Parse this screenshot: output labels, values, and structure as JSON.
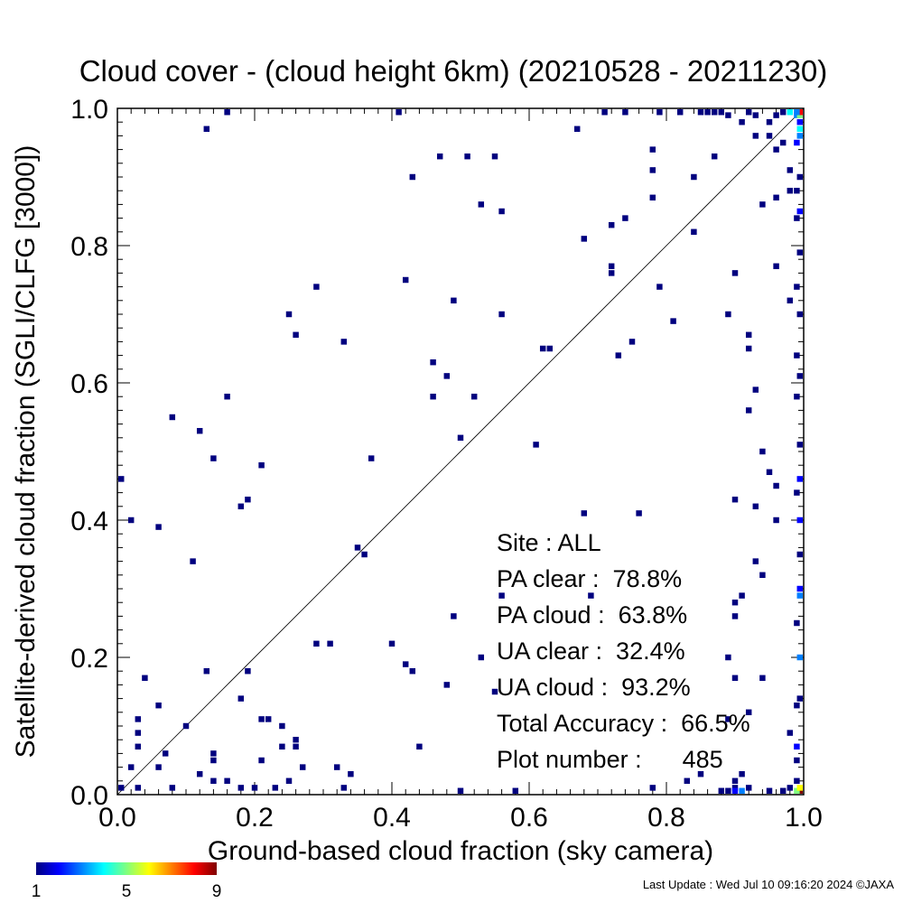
{
  "chart_data": {
    "type": "heatmap",
    "title": "Cloud cover - (cloud height 6km)  (20210528 - 20211230)",
    "xlabel": "Ground-based cloud fraction (sky camera)",
    "ylabel": "Satellite-derived cloud fraction (SGLI/CLFG [3000])",
    "xlim": [
      0.0,
      1.0
    ],
    "ylim": [
      0.0,
      1.0
    ],
    "xticks": [
      "0.0",
      "0.2",
      "0.4",
      "0.6",
      "0.8",
      "1.0"
    ],
    "yticks": [
      "0.0",
      "0.2",
      "0.4",
      "0.6",
      "0.8",
      "1.0"
    ],
    "grid": false,
    "diagonal": true,
    "bin_size": 0.01,
    "colorbar": {
      "min_label": "1",
      "mid_label": "5",
      "max_label": "9",
      "colors": [
        "#00007f",
        "#0000ff",
        "#007fff",
        "#00ffff",
        "#7fff7f",
        "#ffff00",
        "#ff7f00",
        "#ff0000",
        "#7f0000"
      ]
    },
    "stats": [
      "Site : ALL",
      "PA clear :  78.8%",
      "PA cloud :  63.8%",
      "UA clear :  32.4%",
      "UA cloud :  93.2%",
      "Total Accuracy :  66.5%",
      "Plot number :      485"
    ],
    "points": [
      [
        0.0,
        0.46,
        1
      ],
      [
        0.02,
        0.4,
        1
      ],
      [
        0.06,
        0.39,
        1
      ],
      [
        0.11,
        0.34,
        1
      ],
      [
        0.08,
        0.55,
        1
      ],
      [
        0.12,
        0.53,
        1
      ],
      [
        0.14,
        0.49,
        1
      ],
      [
        0.16,
        0.58,
        1
      ],
      [
        0.18,
        0.42,
        1
      ],
      [
        0.19,
        0.43,
        1
      ],
      [
        0.21,
        0.48,
        1
      ],
      [
        0.13,
        0.97,
        1
      ],
      [
        0.16,
        1.0,
        1
      ],
      [
        0.41,
        1.0,
        1
      ],
      [
        0.43,
        0.9,
        1
      ],
      [
        0.47,
        0.93,
        1
      ],
      [
        0.51,
        0.93,
        1
      ],
      [
        0.55,
        0.93,
        1
      ],
      [
        0.53,
        0.86,
        1
      ],
      [
        0.56,
        0.85,
        1
      ],
      [
        0.42,
        0.75,
        1
      ],
      [
        0.29,
        0.74,
        1
      ],
      [
        0.25,
        0.7,
        1
      ],
      [
        0.26,
        0.67,
        1
      ],
      [
        0.33,
        0.66,
        1
      ],
      [
        0.49,
        0.72,
        1
      ],
      [
        0.56,
        0.7,
        1
      ],
      [
        0.46,
        0.63,
        1
      ],
      [
        0.48,
        0.61,
        1
      ],
      [
        0.46,
        0.58,
        1
      ],
      [
        0.52,
        0.58,
        1
      ],
      [
        0.5,
        0.52,
        1
      ],
      [
        0.37,
        0.49,
        1
      ],
      [
        0.61,
        0.51,
        1
      ],
      [
        0.62,
        0.65,
        1
      ],
      [
        0.63,
        0.65,
        1
      ],
      [
        0.67,
        0.97,
        1
      ],
      [
        0.68,
        0.81,
        1
      ],
      [
        0.72,
        0.83,
        1
      ],
      [
        0.74,
        0.84,
        1
      ],
      [
        0.72,
        0.77,
        1
      ],
      [
        0.72,
        0.76,
        1
      ],
      [
        0.73,
        0.64,
        1
      ],
      [
        0.75,
        0.66,
        1
      ],
      [
        0.78,
        0.94,
        1
      ],
      [
        0.78,
        0.91,
        1
      ],
      [
        0.78,
        0.87,
        1
      ],
      [
        0.79,
        0.74,
        1
      ],
      [
        0.81,
        0.69,
        1
      ],
      [
        0.84,
        0.9,
        1
      ],
      [
        0.84,
        0.82,
        1
      ],
      [
        0.87,
        0.93,
        1
      ],
      [
        0.89,
        0.7,
        1
      ],
      [
        0.9,
        0.76,
        1
      ],
      [
        0.92,
        0.67,
        1
      ],
      [
        0.92,
        0.65,
        1
      ],
      [
        0.93,
        0.59,
        1
      ],
      [
        0.92,
        0.56,
        1
      ],
      [
        0.94,
        0.86,
        1
      ],
      [
        0.96,
        0.77,
        1
      ],
      [
        0.96,
        0.87,
        1
      ],
      [
        0.97,
        0.95,
        1
      ],
      [
        0.96,
        0.94,
        1
      ],
      [
        0.93,
        0.96,
        1
      ],
      [
        0.95,
        0.96,
        1
      ],
      [
        0.94,
        0.5,
        1
      ],
      [
        0.95,
        0.47,
        1
      ],
      [
        0.93,
        0.42,
        1
      ],
      [
        0.96,
        0.45,
        1
      ],
      [
        0.96,
        0.4,
        1
      ],
      [
        0.93,
        0.34,
        1
      ],
      [
        0.94,
        0.32,
        1
      ],
      [
        0.91,
        0.29,
        1
      ],
      [
        0.9,
        0.28,
        1
      ],
      [
        0.9,
        0.26,
        1
      ],
      [
        0.9,
        0.43,
        1
      ],
      [
        0.89,
        0.2,
        1
      ],
      [
        0.9,
        0.17,
        1
      ],
      [
        0.94,
        0.17,
        1
      ],
      [
        0.89,
        0.11,
        1
      ],
      [
        0.92,
        0.12,
        1
      ],
      [
        0.68,
        0.41,
        1
      ],
      [
        0.76,
        0.41,
        1
      ],
      [
        0.69,
        0.29,
        1
      ],
      [
        0.56,
        0.29,
        1
      ],
      [
        0.49,
        0.26,
        1
      ],
      [
        0.53,
        0.2,
        1
      ],
      [
        0.55,
        0.15,
        1
      ],
      [
        0.48,
        0.16,
        1
      ],
      [
        0.4,
        0.22,
        1
      ],
      [
        0.42,
        0.19,
        1
      ],
      [
        0.43,
        0.18,
        1
      ],
      [
        0.29,
        0.22,
        1
      ],
      [
        0.31,
        0.22,
        1
      ],
      [
        0.35,
        0.36,
        1
      ],
      [
        0.36,
        0.35,
        1
      ],
      [
        0.13,
        0.18,
        1
      ],
      [
        0.19,
        0.18,
        1
      ],
      [
        0.18,
        0.14,
        1
      ],
      [
        0.21,
        0.11,
        1
      ],
      [
        0.22,
        0.11,
        1
      ],
      [
        0.24,
        0.1,
        1
      ],
      [
        0.26,
        0.08,
        1
      ],
      [
        0.26,
        0.07,
        1
      ],
      [
        0.24,
        0.07,
        1
      ],
      [
        0.21,
        0.05,
        1
      ],
      [
        0.14,
        0.06,
        1
      ],
      [
        0.14,
        0.05,
        1
      ],
      [
        0.1,
        0.1,
        1
      ],
      [
        0.07,
        0.06,
        1
      ],
      [
        0.06,
        0.04,
        1
      ],
      [
        0.03,
        0.11,
        1
      ],
      [
        0.03,
        0.09,
        1
      ],
      [
        0.03,
        0.07,
        1
      ],
      [
        0.04,
        0.17,
        1
      ],
      [
        0.06,
        0.13,
        1
      ],
      [
        0.02,
        0.04,
        1
      ],
      [
        0.0,
        0.01,
        1
      ],
      [
        0.03,
        0.01,
        1
      ],
      [
        0.08,
        0.01,
        1
      ],
      [
        0.12,
        0.03,
        1
      ],
      [
        0.14,
        0.02,
        1
      ],
      [
        0.16,
        0.02,
        1
      ],
      [
        0.18,
        0.01,
        1
      ],
      [
        0.2,
        0.01,
        1
      ],
      [
        0.23,
        0.01,
        1
      ],
      [
        0.25,
        0.02,
        1
      ],
      [
        0.27,
        0.04,
        1
      ],
      [
        0.32,
        0.04,
        1
      ],
      [
        0.34,
        0.03,
        1
      ],
      [
        0.33,
        0.01,
        1
      ],
      [
        0.44,
        0.07,
        1
      ],
      [
        0.5,
        0.0,
        1
      ],
      [
        0.58,
        0.0,
        1
      ],
      [
        0.78,
        0.01,
        1
      ],
      [
        0.83,
        0.02,
        1
      ],
      [
        0.88,
        0.0,
        1
      ],
      [
        0.9,
        0.02,
        1
      ],
      [
        0.91,
        0.03,
        1
      ],
      [
        0.85,
        0.03,
        1
      ],
      [
        0.9,
        0.01,
        1
      ],
      [
        0.9,
        0.0,
        2
      ],
      [
        0.91,
        0.0,
        3
      ],
      [
        0.89,
        0.0,
        1
      ],
      [
        0.92,
        0.01,
        1
      ],
      [
        0.95,
        0.0,
        1
      ],
      [
        0.97,
        0.0,
        1
      ],
      [
        0.98,
        0.01,
        1
      ],
      [
        0.99,
        0.02,
        1
      ],
      [
        1.0,
        0.0,
        9
      ],
      [
        0.99,
        0.0,
        5
      ],
      [
        1.0,
        0.01,
        6
      ],
      [
        0.99,
        0.05,
        1
      ],
      [
        0.99,
        0.07,
        2
      ],
      [
        0.98,
        0.09,
        1
      ],
      [
        0.99,
        0.13,
        1
      ],
      [
        1.0,
        0.14,
        1
      ],
      [
        1.0,
        0.2,
        3
      ],
      [
        0.99,
        0.25,
        1
      ],
      [
        1.0,
        0.29,
        3
      ],
      [
        1.0,
        0.3,
        2
      ],
      [
        1.0,
        0.35,
        1
      ],
      [
        1.0,
        0.4,
        2
      ],
      [
        0.99,
        0.44,
        1
      ],
      [
        1.0,
        0.46,
        2
      ],
      [
        1.0,
        0.51,
        1
      ],
      [
        0.99,
        0.58,
        1
      ],
      [
        1.0,
        0.61,
        1
      ],
      [
        0.99,
        0.64,
        1
      ],
      [
        1.0,
        0.7,
        1
      ],
      [
        0.98,
        0.72,
        1
      ],
      [
        0.99,
        0.74,
        1
      ],
      [
        1.0,
        0.79,
        1
      ],
      [
        0.99,
        0.84,
        1
      ],
      [
        1.0,
        0.85,
        2
      ],
      [
        0.98,
        0.88,
        1
      ],
      [
        0.99,
        0.88,
        1
      ],
      [
        1.0,
        0.9,
        1
      ],
      [
        0.98,
        0.91,
        1
      ],
      [
        0.99,
        0.95,
        2
      ],
      [
        1.0,
        0.96,
        3
      ],
      [
        1.0,
        0.97,
        4
      ],
      [
        1.0,
        0.98,
        2
      ],
      [
        0.99,
        0.99,
        3
      ],
      [
        1.0,
        0.99,
        5
      ],
      [
        1.0,
        1.0,
        8
      ],
      [
        0.99,
        1.0,
        3
      ],
      [
        0.98,
        1.0,
        4
      ],
      [
        0.97,
        1.0,
        1
      ],
      [
        0.96,
        0.99,
        1
      ],
      [
        0.95,
        0.98,
        1
      ],
      [
        0.93,
        0.99,
        1
      ],
      [
        0.92,
        1.0,
        1
      ],
      [
        0.91,
        0.98,
        1
      ],
      [
        0.89,
        0.99,
        1
      ],
      [
        0.88,
        1.0,
        1
      ],
      [
        0.87,
        1.0,
        1
      ],
      [
        0.86,
        1.0,
        1
      ],
      [
        0.85,
        1.0,
        1
      ],
      [
        0.82,
        1.0,
        1
      ],
      [
        0.79,
        1.0,
        1
      ],
      [
        0.74,
        1.0,
        1
      ],
      [
        0.71,
        1.0,
        1
      ]
    ],
    "footer": "Last Update : Wed Jul 10 09:16:20 2024  ©JAXA"
  }
}
